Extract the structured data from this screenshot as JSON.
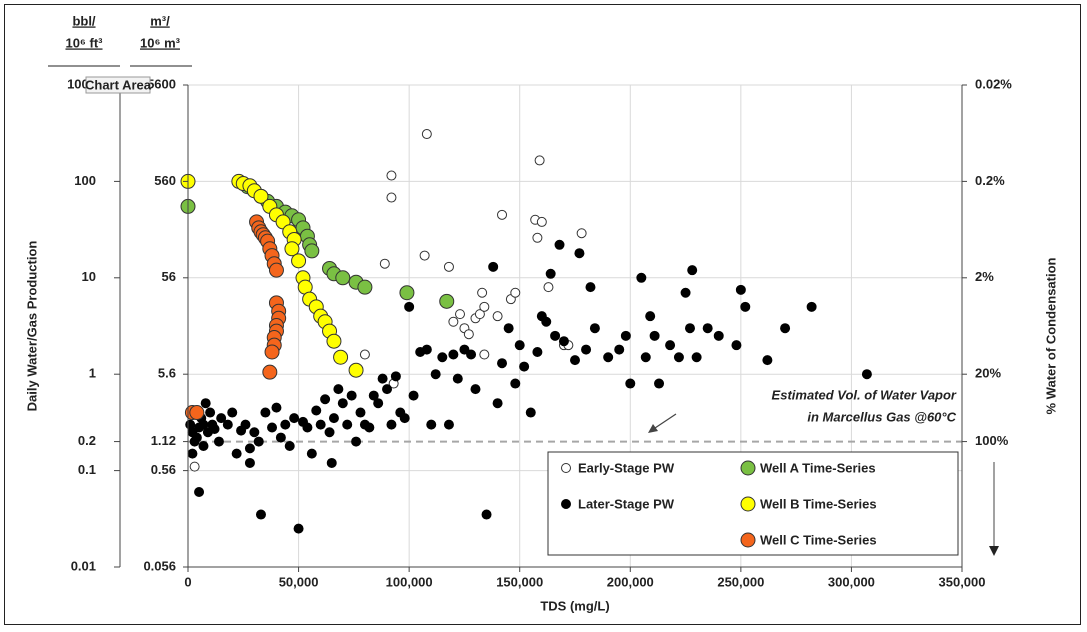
{
  "chart_data": {
    "type": "scatter",
    "y_title": "Daily Water/Gas Production",
    "y2_title": "% Water of Condensation",
    "x_title": "TDS (mg/L)",
    "bbl_unit": [
      "bbl/",
      "10⁶ ft³"
    ],
    "m3_unit": [
      "m³/",
      "10⁶ m³"
    ],
    "tooltip": "Chart Area",
    "log_y": true,
    "grid": true,
    "xlim": [
      0,
      350000
    ],
    "xticks": [
      0,
      {
        "value": 50000,
        "label": "50,000"
      },
      {
        "value": 100000,
        "label": "100,000"
      },
      {
        "value": 150000,
        "label": "150,000"
      },
      {
        "value": 200000,
        "label": "200,000"
      },
      {
        "value": 250000,
        "label": "250,000"
      },
      {
        "value": 300000,
        "label": "300,000"
      },
      {
        "value": 350000,
        "label": "350,000"
      }
    ],
    "ylim": [
      0.01,
      1000
    ],
    "yticks": [
      0.01,
      0.1,
      0.2,
      1,
      10,
      100,
      1000
    ],
    "m3_lim": [
      0.056,
      5600
    ],
    "m3_ticks": [
      0.056,
      0.56,
      1.12,
      5.6,
      56,
      560,
      5600
    ],
    "y2lim": [
      2000,
      0.02
    ],
    "y2ticks": [
      {
        "value": 100,
        "label": "100%"
      },
      {
        "value": 20,
        "label": "20%"
      },
      {
        "value": 2,
        "label": "2%"
      },
      {
        "value": 0.2,
        "label": "0.2%"
      },
      {
        "value": 0.02,
        "label": "0.02%"
      }
    ],
    "hline": 0.2,
    "annotation": [
      "Estimated Vol. of Water Vapor",
      "in Marcellus Gas @60°C"
    ],
    "series": [
      {
        "name": "Early-Stage PW",
        "color": "#ffffff",
        "edge": "#333333",
        "x": [
          3000,
          80000,
          89000,
          92000,
          92000,
          93000,
          107000,
          108000,
          118000,
          120000,
          123000,
          125000,
          127000,
          130000,
          132000,
          133000,
          134000,
          134000,
          140000,
          142000,
          146000,
          148000,
          157000,
          158000,
          159000,
          160000,
          163000,
          170000,
          172000,
          178000
        ],
        "values": [
          0.11,
          1.6,
          14,
          68,
          115,
          0.8,
          17,
          310,
          13,
          3.5,
          4.2,
          3,
          2.6,
          3.8,
          4.2,
          7,
          5,
          1.6,
          4,
          45,
          6,
          7,
          40,
          26,
          165,
          38,
          8,
          2,
          2,
          29
        ]
      },
      {
        "name": "Later-Stage PW",
        "color": "#000000",
        "edge": "#000000",
        "x": [
          1000,
          2000,
          2000,
          3000,
          4000,
          5000,
          5000,
          6000,
          7000,
          7000,
          8000,
          9000,
          10000,
          11000,
          12000,
          14000,
          15000,
          18000,
          20000,
          22000,
          24000,
          26000,
          28000,
          28000,
          30000,
          32000,
          33000,
          35000,
          38000,
          40000,
          42000,
          44000,
          46000,
          48000,
          50000,
          52000,
          54000,
          56000,
          58000,
          60000,
          62000,
          64000,
          65000,
          66000,
          68000,
          70000,
          72000,
          74000,
          76000,
          78000,
          80000,
          82000,
          84000,
          86000,
          88000,
          90000,
          92000,
          94000,
          96000,
          98000,
          100000,
          102000,
          105000,
          108000,
          110000,
          112000,
          115000,
          118000,
          120000,
          122000,
          125000,
          128000,
          130000,
          135000,
          138000,
          140000,
          142000,
          145000,
          148000,
          150000,
          152000,
          155000,
          158000,
          160000,
          162000,
          164000,
          166000,
          168000,
          170000,
          175000,
          177000,
          180000,
          182000,
          184000,
          190000,
          195000,
          198000,
          200000,
          205000,
          207000,
          209000,
          211000,
          213000,
          218000,
          222000,
          225000,
          227000,
          228000,
          230000,
          235000,
          240000,
          248000,
          250000,
          252000,
          262000,
          270000,
          282000,
          307000
        ],
        "values": [
          0.3,
          0.25,
          0.15,
          0.2,
          0.22,
          0.28,
          0.06,
          0.35,
          0.3,
          0.18,
          0.5,
          0.25,
          0.4,
          0.3,
          0.27,
          0.2,
          0.35,
          0.3,
          0.4,
          0.15,
          0.26,
          0.3,
          0.12,
          0.17,
          0.25,
          0.2,
          0.035,
          0.4,
          0.28,
          0.45,
          0.22,
          0.3,
          0.18,
          0.35,
          0.025,
          0.32,
          0.28,
          0.15,
          0.42,
          0.3,
          0.55,
          0.25,
          0.12,
          0.35,
          0.7,
          0.5,
          0.3,
          0.6,
          0.2,
          0.4,
          0.3,
          0.28,
          0.6,
          0.5,
          0.9,
          0.7,
          0.3,
          0.95,
          0.4,
          0.35,
          5,
          0.6,
          1.7,
          1.8,
          0.3,
          1,
          1.5,
          0.3,
          1.6,
          0.9,
          1.8,
          1.6,
          0.7,
          0.035,
          13,
          0.5,
          1.3,
          3,
          0.8,
          2,
          1.2,
          0.4,
          1.7,
          4,
          3.5,
          11,
          2.5,
          22,
          2.2,
          1.4,
          18,
          1.8,
          8,
          3,
          1.5,
          1.8,
          2.5,
          0.8,
          10,
          1.5,
          4,
          2.5,
          0.8,
          2,
          1.5,
          7,
          3,
          12,
          1.5,
          3,
          2.5,
          2,
          7.5,
          5,
          1.4,
          3,
          5,
          1
        ]
      },
      {
        "name": "Well A Time-Series",
        "color": "#7ac043",
        "edge": "#333333",
        "x": [
          0,
          27000,
          30000,
          33000,
          36000,
          40000,
          44000,
          47000,
          50000,
          52000,
          54000,
          55000,
          56000,
          64000,
          66000,
          70000,
          76000,
          80000,
          99000,
          117000
        ],
        "values": [
          55,
          88,
          80,
          70,
          62,
          55,
          48,
          44,
          40,
          33,
          27,
          22,
          19,
          12.5,
          11,
          10,
          9,
          8,
          7,
          5.7
        ]
      },
      {
        "name": "Well B Time-Series",
        "color": "#ffff00",
        "edge": "#333333",
        "x": [
          0,
          23000,
          25000,
          28000,
          30000,
          33000,
          37000,
          40000,
          43000,
          46000,
          48000,
          47000,
          50000,
          52000,
          53000,
          55000,
          58000,
          60000,
          62000,
          64000,
          66000,
          69000,
          76000
        ],
        "values": [
          100,
          100,
          95,
          90,
          80,
          70,
          55,
          45,
          38,
          30,
          25,
          20,
          15,
          10,
          8,
          6,
          5,
          4,
          3.5,
          2.8,
          2.2,
          1.5,
          1.1
        ]
      },
      {
        "name": "Well C Time-Series",
        "color": "#f4651c",
        "edge": "#333333",
        "x": [
          2000,
          4000,
          31000,
          32000,
          33000,
          34000,
          35000,
          36000,
          37000,
          38000,
          39000,
          40000,
          37000,
          40000,
          41000,
          41000,
          40000,
          40000,
          39000,
          39000,
          38000
        ],
        "values": [
          0.4,
          0.4,
          38,
          33,
          30,
          28,
          26,
          24,
          20,
          17,
          14,
          12,
          1.05,
          5.5,
          4.5,
          3.8,
          3.2,
          2.8,
          2.4,
          2,
          1.7
        ]
      }
    ]
  }
}
